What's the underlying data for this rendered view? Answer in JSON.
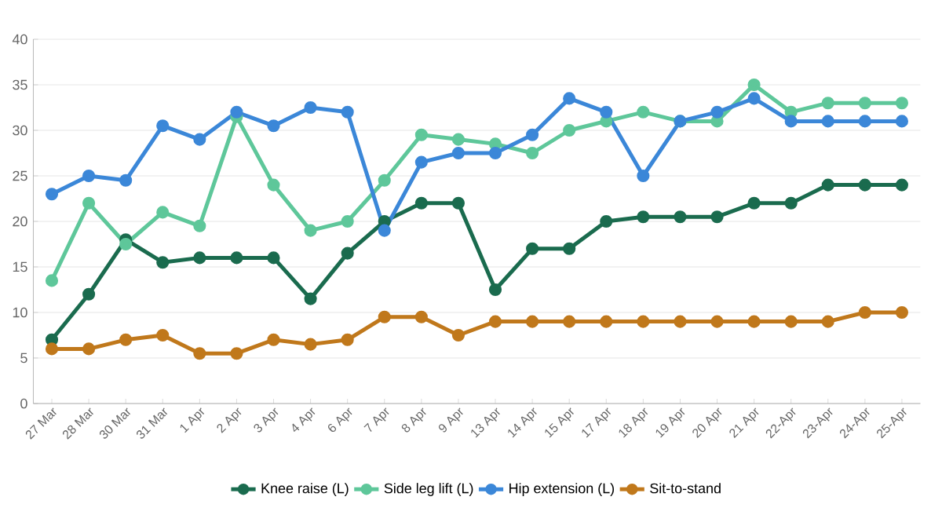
{
  "chart_data": {
    "type": "line",
    "categories": [
      "27 Mar",
      "28 Mar",
      "30 Mar",
      "31 Mar",
      "1 Apr",
      "2 Apr",
      "3 Apr",
      "4 Apr",
      "6 Apr",
      "7 Apr",
      "8 Apr",
      "9 Apr",
      "13 Apr",
      "14 Apr",
      "15 Apr",
      "17 Apr",
      "18 Apr",
      "19 Apr",
      "20 Apr",
      "21 Apr",
      "22-Apr",
      "23-Apr",
      "24-Apr",
      "25-Apr"
    ],
    "series": [
      {
        "name": "Knee raise (L)",
        "color": "#1a6b4e",
        "values": [
          7,
          12,
          18,
          15.5,
          16,
          16,
          16,
          11.5,
          16.5,
          20,
          22,
          22,
          12.5,
          17,
          17,
          20,
          20.5,
          20.5,
          20.5,
          22,
          22,
          24,
          24,
          24
        ]
      },
      {
        "name": "Side leg lift (L)",
        "color": "#5ec79a",
        "values": [
          13.5,
          22,
          17.5,
          21,
          19.5,
          31.5,
          24,
          19,
          20,
          24.5,
          29.5,
          29,
          28.5,
          27.5,
          30,
          31,
          32,
          31,
          31,
          35,
          32,
          33,
          33,
          33
        ]
      },
      {
        "name": "Hip extension (L)",
        "color": "#3b87d8",
        "values": [
          23,
          25,
          24.5,
          30.5,
          29,
          32,
          30.5,
          32.5,
          32,
          19,
          26.5,
          27.5,
          27.5,
          29.5,
          33.5,
          32,
          25,
          31,
          32,
          33.5,
          31,
          31,
          31,
          31
        ]
      },
      {
        "name": "Sit-to-stand",
        "color": "#c0781b",
        "values": [
          6,
          6,
          7,
          7.5,
          5.5,
          5.5,
          7,
          6.5,
          7,
          9.5,
          9.5,
          7.5,
          9,
          9,
          9,
          9,
          9,
          9,
          9,
          9,
          9,
          9,
          10,
          10
        ]
      }
    ],
    "ylim": [
      0,
      40
    ],
    "yticks": [
      0,
      5,
      10,
      15,
      20,
      25,
      30,
      35,
      40
    ],
    "grid": "y",
    "legend": "bottom",
    "marker": "circle",
    "line_style": "solid"
  }
}
